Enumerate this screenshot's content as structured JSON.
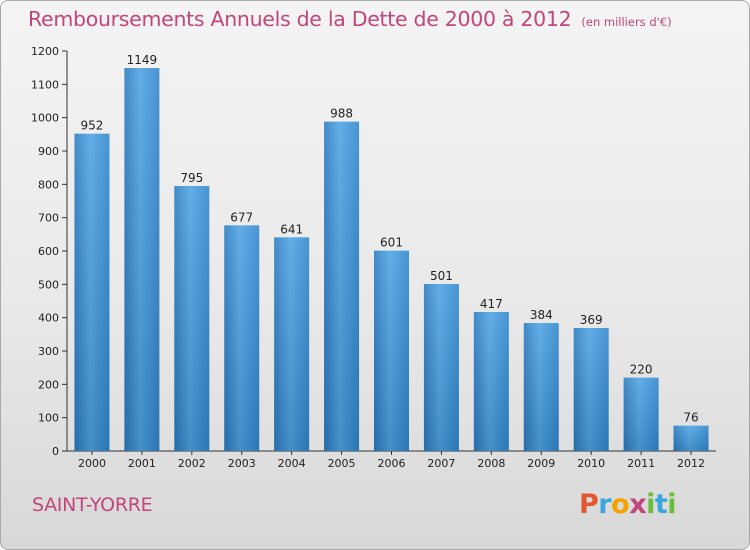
{
  "chart_data": {
    "type": "bar",
    "title": "Remboursements Annuels de la Dette de 2000 à 2012",
    "subtitle": "(en milliers d'€)",
    "categories": [
      "2000",
      "2001",
      "2002",
      "2003",
      "2004",
      "2005",
      "2006",
      "2007",
      "2008",
      "2009",
      "2010",
      "2011",
      "2012"
    ],
    "values": [
      952,
      1149,
      795,
      677,
      641,
      988,
      601,
      501,
      417,
      384,
      369,
      220,
      76
    ],
    "ylim": [
      0,
      1200
    ],
    "yticks": [
      0,
      100,
      200,
      300,
      400,
      500,
      600,
      700,
      800,
      900,
      1000,
      1100,
      1200
    ],
    "xlabel": "",
    "ylabel": "",
    "grid": false,
    "bar_color": "#2f86cc",
    "data_labels": true
  },
  "footer": {
    "commune": "SAINT-YORRE",
    "brand": "Proxiti"
  },
  "colors": {
    "title": "#c2457b",
    "brand_letters": [
      "#e4572e",
      "#3aa6dd",
      "#f6a300",
      "#c2457b",
      "#6abf3a",
      "#3aa6dd",
      "#6abf3a"
    ]
  }
}
